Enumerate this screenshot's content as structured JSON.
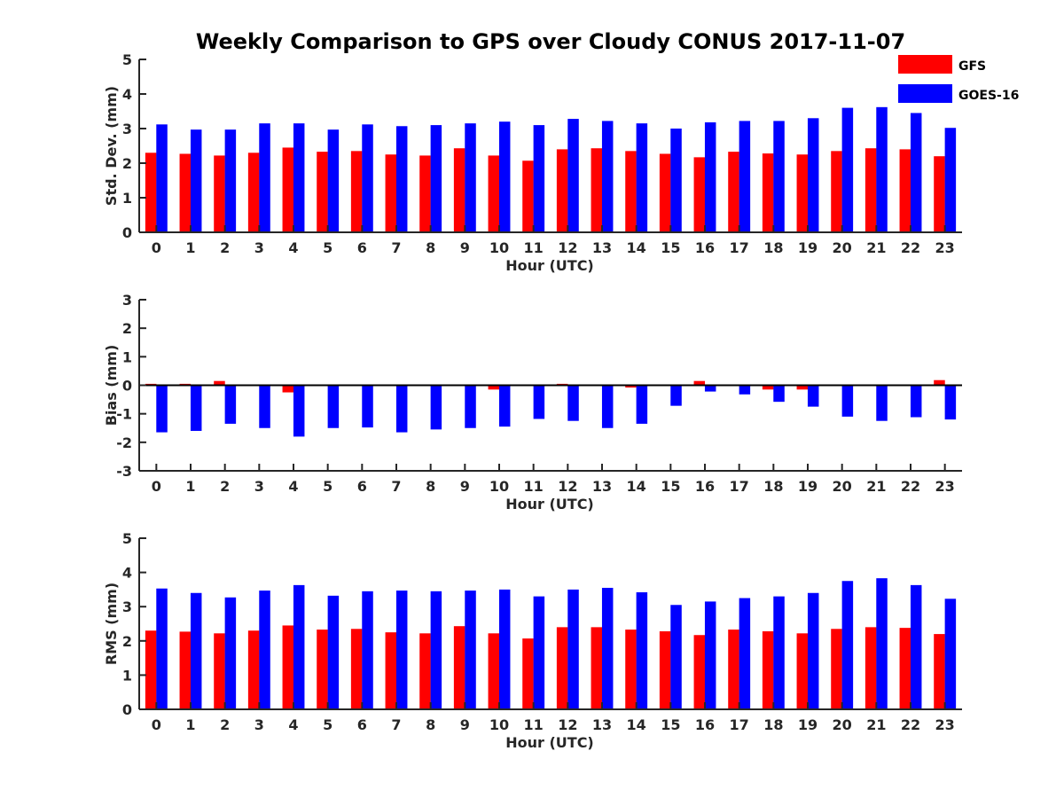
{
  "title": "Weekly Comparison to GPS over Cloudy CONUS 2017-11-07",
  "colors": {
    "GFS": "#ff0000",
    "GOES-16": "#0000ff"
  },
  "legend": [
    "GFS",
    "GOES-16"
  ],
  "chart_data": [
    {
      "type": "bar",
      "ylabel": "Std. Dev. (mm)",
      "xlabel": "Hour (UTC)",
      "ylim": [
        0,
        5
      ],
      "yticks": [
        0,
        1,
        2,
        3,
        4,
        5
      ],
      "categories": [
        "0",
        "1",
        "2",
        "3",
        "4",
        "5",
        "6",
        "7",
        "8",
        "9",
        "10",
        "11",
        "12",
        "13",
        "14",
        "15",
        "16",
        "17",
        "18",
        "19",
        "20",
        "21",
        "22",
        "23"
      ],
      "series": [
        {
          "name": "GFS",
          "values": [
            2.3,
            2.27,
            2.22,
            2.3,
            2.45,
            2.33,
            2.35,
            2.25,
            2.22,
            2.43,
            2.22,
            2.07,
            2.4,
            2.43,
            2.35,
            2.27,
            2.17,
            2.33,
            2.28,
            2.25,
            2.35,
            2.43,
            2.4,
            2.2
          ]
        },
        {
          "name": "GOES-16",
          "values": [
            3.12,
            2.97,
            2.97,
            3.15,
            3.15,
            2.97,
            3.12,
            3.07,
            3.1,
            3.15,
            3.2,
            3.1,
            3.28,
            3.22,
            3.15,
            3.0,
            3.18,
            3.22,
            3.22,
            3.3,
            3.6,
            3.62,
            3.45,
            3.02
          ]
        }
      ]
    },
    {
      "type": "bar",
      "ylabel": "Bias (mm)",
      "xlabel": "Hour (UTC)",
      "ylim": [
        -3,
        3
      ],
      "yticks": [
        -3,
        -2,
        -1,
        0,
        1,
        2,
        3
      ],
      "categories": [
        "0",
        "1",
        "2",
        "3",
        "4",
        "5",
        "6",
        "7",
        "8",
        "9",
        "10",
        "11",
        "12",
        "13",
        "14",
        "15",
        "16",
        "17",
        "18",
        "19",
        "20",
        "21",
        "22",
        "23"
      ],
      "series": [
        {
          "name": "GFS",
          "values": [
            0.05,
            0.05,
            0.15,
            0.0,
            -0.25,
            -0.03,
            0.02,
            0.0,
            0.0,
            0.02,
            -0.15,
            0.0,
            0.05,
            0.0,
            -0.08,
            0.0,
            0.15,
            -0.03,
            -0.15,
            -0.15,
            -0.03,
            0.02,
            0.02,
            0.18
          ]
        },
        {
          "name": "GOES-16",
          "values": [
            -1.65,
            -1.6,
            -1.35,
            -1.5,
            -1.8,
            -1.5,
            -1.48,
            -1.65,
            -1.55,
            -1.5,
            -1.45,
            -1.18,
            -1.25,
            -1.5,
            -1.35,
            -0.72,
            -0.22,
            -0.32,
            -0.58,
            -0.75,
            -1.1,
            -1.25,
            -1.12,
            -1.2
          ]
        }
      ]
    },
    {
      "type": "bar",
      "ylabel": "RMS (mm)",
      "xlabel": "Hour (UTC)",
      "ylim": [
        0,
        5
      ],
      "yticks": [
        0,
        1,
        2,
        3,
        4,
        5
      ],
      "categories": [
        "0",
        "1",
        "2",
        "3",
        "4",
        "5",
        "6",
        "7",
        "8",
        "9",
        "10",
        "11",
        "12",
        "13",
        "14",
        "15",
        "16",
        "17",
        "18",
        "19",
        "20",
        "21",
        "22",
        "23"
      ],
      "series": [
        {
          "name": "GFS",
          "values": [
            2.3,
            2.27,
            2.22,
            2.3,
            2.45,
            2.33,
            2.35,
            2.25,
            2.22,
            2.43,
            2.22,
            2.07,
            2.4,
            2.4,
            2.33,
            2.28,
            2.17,
            2.33,
            2.28,
            2.22,
            2.35,
            2.4,
            2.38,
            2.2
          ]
        },
        {
          "name": "GOES-16",
          "values": [
            3.53,
            3.4,
            3.27,
            3.47,
            3.63,
            3.32,
            3.45,
            3.47,
            3.45,
            3.47,
            3.5,
            3.3,
            3.5,
            3.55,
            3.42,
            3.05,
            3.15,
            3.25,
            3.3,
            3.4,
            3.75,
            3.83,
            3.63,
            3.23
          ]
        }
      ]
    }
  ]
}
